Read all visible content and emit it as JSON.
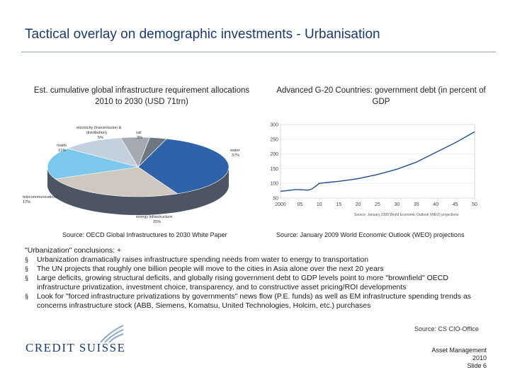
{
  "title": "Tactical overlay on demographic investments - Urbanisation",
  "left_chart": {
    "title": "Est. cumulative global infrastructure requirement allocations 2010 to 2030 (USD 71trn)",
    "source": "Source: OECD Global Infrastructures to 2030 White Paper",
    "chart_data": {
      "type": "pie",
      "slices": [
        {
          "label": "water",
          "value": 37,
          "color": "#2f62a8"
        },
        {
          "label": "energy infrastructure",
          "value": 25,
          "color": "#cfc8c0"
        },
        {
          "label": "telecommunications",
          "value": 17,
          "color": "#7cc8ec"
        },
        {
          "label": "roads",
          "value": 11,
          "color": "#c3d0dd"
        },
        {
          "label": "electricity (transmission & distribution)",
          "value": 5,
          "color": "#a4a9b2"
        },
        {
          "label": "rail",
          "value": 3,
          "color": "#6d7784"
        }
      ],
      "labels_display": {
        "electricity": "electricity (transmission &",
        "electricity2": "distribution)",
        "electricity_pct": "5%",
        "rail": "rail",
        "rail_pct": "3%",
        "roads": "roads",
        "roads_pct": "11%",
        "water": "water",
        "water_pct": "37%",
        "telecom": "telecommunications",
        "telecom_pct": "17%",
        "energy": "energy infrastructure",
        "energy_pct": "25%"
      }
    }
  },
  "right_chart": {
    "title": "Advanced G-20 Countries: government debt (in percent of GDP",
    "source": "Source: January 2009 World Economic Outlook (WEO) projections",
    "chart_data": {
      "type": "line",
      "x_ticks": [
        "2000",
        "05",
        "10",
        "15",
        "20",
        "25",
        "30",
        "35",
        "40",
        "45",
        "50"
      ],
      "y_ticks": [
        "300",
        "250",
        "200",
        "150",
        "100",
        "50"
      ],
      "ylim": [
        50,
        300
      ],
      "inner_source": "Source: January 2009 World Economic Outlook (WEO) projections",
      "x": [
        2000,
        2002,
        2004,
        2006,
        2007,
        2008,
        2009,
        2010,
        2012,
        2015,
        2018,
        2020,
        2025,
        2030,
        2035,
        2040,
        2045,
        2050
      ],
      "values": [
        73,
        76,
        79,
        78,
        77,
        80,
        90,
        100,
        103,
        107,
        112,
        116,
        130,
        148,
        172,
        205,
        238,
        275
      ],
      "line_color": "#1f4e8c"
    }
  },
  "bullets": {
    "heading": "\"Urbanization\" conclusions: +",
    "marker": "§",
    "items": [
      "Urbanization dramatically raises infrastructure spending needs from water to energy to transportation",
      "The UN projects that roughly one billion people will move to the cities in Asia alone over the next 20 years",
      "Large deficits, growing structural deficits, and globally rising government debt to GDP levels point to more \"brownfield\" OECD infrastructure privatization, investment choice, transparency, and to constructive asset pricing/ROI developments",
      "Look for \"forced infrastructure privatizations by governments\" news flow (P.E. funds) as well as EM infrastructure spending trends as concerns infrastructure stock (ABB, Siemens, Komatsu, United Technologies, Holcim, etc.) purchases"
    ]
  },
  "cio_note": "Source: CS CIO-Office",
  "logo": "CREDIT SUISSE",
  "footer": {
    "line1": "Asset Management",
    "line2": "2010",
    "line3": "Slide 6"
  }
}
